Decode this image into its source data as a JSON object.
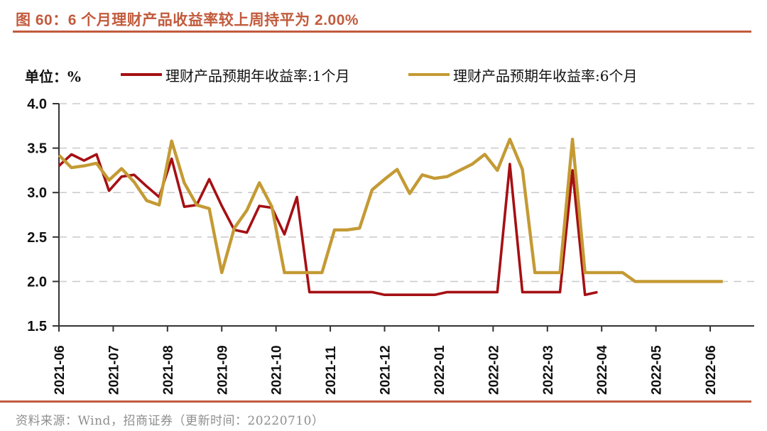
{
  "header": {
    "title": "图 60：6 个月理财产品收益率较上周持平为 2.00%"
  },
  "legend": {
    "unit_label": "单位：%",
    "items": [
      {
        "label": "理财产品预期年收益率:1个月",
        "color": "#A51014"
      },
      {
        "label": "理财产品预期年收益率:6个月",
        "color": "#C49A34"
      }
    ]
  },
  "footer": {
    "source": "资料来源：Wind，招商证券（更新时间：20220710）"
  },
  "colors": {
    "accent": "#C25B3D",
    "red_series": "#A51014",
    "gold_series": "#C49A34",
    "grid": "#CCCCCC",
    "axis": "#333333",
    "tick_label": "#111111",
    "source_text": "#8E8E8E"
  },
  "chart_data": {
    "type": "line",
    "title": "图 60：6 个月理财产品收益率较上周持平为 2.00%",
    "ylabel": "单位：%",
    "ylim": [
      1.5,
      4.0
    ],
    "yticks": [
      "1.5",
      "2.0",
      "2.5",
      "3.0",
      "3.5",
      "4.0"
    ],
    "grid": "horizontal-dashed",
    "legend_position": "top",
    "x_frequency": "weekly",
    "x_tick_labels": [
      "2021-06",
      "2021-07",
      "2021-08",
      "2021-09",
      "2021-10",
      "2021-11",
      "2021-12",
      "2022-01",
      "2022-02",
      "2022-03",
      "2022-04",
      "2022-05",
      "2022-06"
    ],
    "series": [
      {
        "name": "理财产品预期年收益率:1个月",
        "color": "#A51014",
        "values": [
          3.3,
          3.43,
          3.36,
          3.43,
          3.02,
          3.18,
          3.2,
          3.07,
          2.95,
          3.38,
          2.84,
          2.86,
          3.15,
          2.85,
          2.58,
          2.55,
          2.85,
          2.83,
          2.53,
          2.95,
          1.88,
          1.88,
          1.88,
          1.88,
          1.88,
          1.88,
          1.85,
          1.85,
          1.85,
          1.85,
          1.85,
          1.88,
          1.88,
          1.88,
          1.88,
          1.88,
          3.32,
          1.88,
          1.88,
          1.88,
          1.88,
          3.25,
          1.85,
          1.88
        ]
      },
      {
        "name": "理财产品预期年收益率:6个月",
        "color": "#C49A34",
        "values": [
          3.42,
          3.28,
          3.3,
          3.33,
          3.14,
          3.27,
          3.12,
          2.91,
          2.86,
          3.58,
          3.11,
          2.86,
          2.82,
          2.1,
          2.6,
          2.8,
          3.11,
          2.84,
          2.1,
          2.1,
          2.1,
          2.1,
          2.58,
          2.58,
          2.6,
          3.03,
          3.15,
          3.26,
          2.99,
          3.2,
          3.16,
          3.18,
          3.25,
          3.32,
          3.43,
          3.25,
          3.6,
          3.26,
          2.1,
          2.1,
          2.1,
          3.6,
          2.1,
          2.1,
          2.1,
          2.1,
          2.0,
          2.0,
          2.0,
          2.0,
          2.0,
          2.0,
          2.0,
          2.0
        ]
      }
    ]
  }
}
